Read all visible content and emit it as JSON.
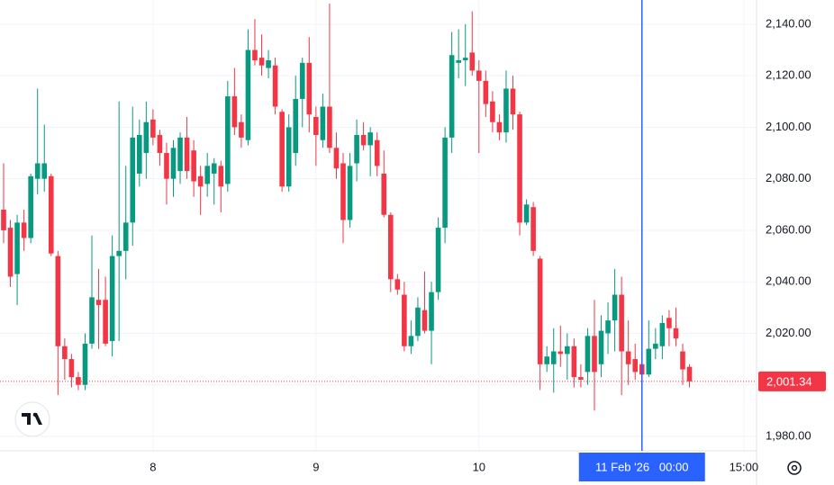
{
  "chart_data": {
    "type": "candlestick",
    "categories": [
      null,
      null,
      null,
      null,
      null,
      null,
      null,
      null,
      null,
      null,
      null,
      null,
      null,
      null,
      null,
      null,
      null,
      null,
      null,
      null,
      null,
      null,
      "8",
      null,
      null,
      null,
      null,
      null,
      null,
      null,
      null,
      null,
      null,
      null,
      null,
      null,
      null,
      null,
      null,
      null,
      null,
      null,
      null,
      null,
      null,
      null,
      "9",
      null,
      null,
      null,
      null,
      null,
      null,
      null,
      null,
      null,
      null,
      null,
      null,
      null,
      null,
      null,
      null,
      null,
      null,
      null,
      null,
      null,
      null,
      null,
      "10",
      null,
      null,
      null,
      null,
      null,
      null,
      null,
      null,
      null,
      null,
      null,
      null,
      null,
      null,
      null,
      null,
      null,
      null,
      null,
      null,
      null,
      null,
      null,
      "11 Feb '26   00:00",
      null,
      null,
      null,
      null,
      null,
      null,
      null,
      null,
      null,
      null,
      null,
      null,
      null,
      null,
      "15:00"
    ],
    "open": [
      2068,
      2061,
      2043,
      2063,
      2057,
      2080,
      2080,
      2081,
      2050,
      2015,
      2010,
      2003,
      2000,
      2016,
      2033,
      2033,
      2017,
      2050,
      2052,
      2063,
      2082,
      2090,
      2103,
      2097,
      2090,
      2080,
      2083,
      2096,
      2091,
      2081,
      2078,
      2082,
      2085,
      2078,
      2112,
      2102,
      2095,
      2130,
      2127,
      2123,
      2124,
      2106,
      2077,
      2090,
      2111,
      2125,
      2104,
      2095,
      2108,
      2092,
      2086,
      2064,
      2086,
      2097,
      2093,
      2095,
      2082,
      2066,
      2041,
      2035,
      2015,
      2019,
      2029,
      2021,
      2036,
      2061,
      2096,
      2125,
      2126,
      2129,
      2122,
      2118,
      2110,
      2102,
      2098,
      2115,
      2105,
      2063,
      2069,
      2049,
      2008,
      2008,
      2013,
      2012,
      2015,
      2003,
      2005,
      2019,
      2008,
      2020,
      2025,
      2035,
      2013,
      2010,
      2008,
      2004,
      2014,
      2015,
      2026,
      2022,
      2013,
      2007,
      null,
      null,
      null,
      null,
      null,
      null,
      null,
      null
    ],
    "high": [
      2086,
      2064,
      2066,
      2068,
      2082,
      2115,
      2101,
      2082,
      2052,
      2018,
      2012,
      2005,
      2020,
      2058,
      2045,
      2042,
      2058,
      2110,
      2085,
      2108,
      2103,
      2110,
      2107,
      2099,
      2094,
      2095,
      2098,
      2104,
      2095,
      2085,
      2090,
      2088,
      2087,
      2118,
      2123,
      2105,
      2138,
      2142,
      2136,
      2130,
      2127,
      2107,
      2105,
      2120,
      2127,
      2135,
      2108,
      2113,
      2148,
      2098,
      2090,
      2090,
      2103,
      2102,
      2100,
      2098,
      2091,
      2067,
      2043,
      2040,
      2025,
      2034,
      2044,
      2040,
      2065,
      2100,
      2137,
      2138,
      2140,
      2145,
      2126,
      2122,
      2114,
      2105,
      2122,
      2120,
      2106,
      2072,
      2071,
      2050,
      2015,
      2022,
      2023,
      2020,
      2018,
      2008,
      2022,
      2033,
      2027,
      2032,
      2045,
      2042,
      2025,
      2016,
      2012,
      2025,
      2022,
      2027,
      2029,
      2030,
      2016,
      2008,
      null,
      null,
      null,
      null,
      null,
      null,
      null,
      null
    ],
    "low": [
      2055,
      2038,
      2031,
      2052,
      2055,
      2074,
      2075,
      2050,
      1996,
      2002,
      1999,
      1998,
      1998,
      2014,
      2014,
      2015,
      2011,
      2017,
      2041,
      2054,
      2077,
      2080,
      2093,
      2085,
      2070,
      2073,
      2078,
      2080,
      2073,
      2066,
      2073,
      2070,
      2067,
      2075,
      2097,
      2092,
      2093,
      2124,
      2120,
      2119,
      2105,
      2075,
      2075,
      2085,
      2100,
      2098,
      2085,
      2092,
      2090,
      2080,
      2055,
      2061,
      2079,
      2091,
      2081,
      2081,
      2065,
      2036,
      2035,
      2013,
      2012,
      2017,
      2020,
      2008,
      2033,
      2055,
      2090,
      2119,
      2116,
      2120,
      2090,
      2104,
      2098,
      2095,
      2094,
      2099,
      2058,
      2062,
      2050,
      1998,
      2005,
      1997,
      2007,
      2002,
      1999,
      1999,
      2000,
      1990,
      2003,
      2012,
      2013,
      1996,
      2000,
      2002,
      1998,
      2003,
      2010,
      2010,
      2015,
      2015,
      2000,
      1999,
      null,
      null,
      null,
      null,
      null,
      null,
      null,
      null
    ],
    "close": [
      2060,
      2042,
      2063,
      2057,
      2081,
      2086,
      2086,
      2051,
      2015,
      2010,
      2003,
      2000,
      2016,
      2034,
      2031,
      2016,
      2050,
      2052,
      2063,
      2096,
      2097,
      2102,
      2096,
      2090,
      2080,
      2092,
      2096,
      2083,
      2079,
      2077,
      2085,
      2086,
      2077,
      2112,
      2100,
      2096,
      2130,
      2126,
      2124,
      2126,
      2108,
      2077,
      2100,
      2111,
      2125,
      2105,
      2097,
      2108,
      2092,
      2084,
      2064,
      2085,
      2097,
      2093,
      2098,
      2085,
      2066,
      2041,
      2037,
      2015,
      2019,
      2030,
      2021,
      2036,
      2061,
      2096,
      2128,
      2126,
      2127,
      2122,
      2118,
      2109,
      2102,
      2098,
      2115,
      2105,
      2063,
      2070,
      2052,
      2008,
      2011,
      2013,
      2012,
      2015,
      2003,
      2002,
      2019,
      2005,
      2021,
      2025,
      2035,
      2013,
      2008,
      2005,
      2004,
      2014,
      2016,
      2024,
      2022,
      2018,
      2006,
      2001.34,
      null,
      null,
      null,
      null,
      null,
      null,
      null,
      null
    ],
    "up_color": "#089981",
    "down_color": "#f23645",
    "ylim": [
      1974.4,
      2149.4
    ],
    "yticks": [
      {
        "value": 1980,
        "label": "1,980.00"
      },
      {
        "value": 2000,
        "label": "2,000.00"
      },
      {
        "value": 2020,
        "label": "2,020.00"
      },
      {
        "value": 2040,
        "label": "2,040.00"
      },
      {
        "value": 2060,
        "label": "2,060.00"
      },
      {
        "value": 2080,
        "label": "2,080.00"
      },
      {
        "value": 2100,
        "label": "2,100.00"
      },
      {
        "value": 2120,
        "label": "2,120.00"
      },
      {
        "value": 2140,
        "label": "2,140.00"
      }
    ],
    "grid": true,
    "crosshair_x": "11 Feb '26   00:00",
    "crosshair_color": "#2962ff",
    "last_price": {
      "value": 2001.34,
      "label": "2,001.34"
    }
  }
}
